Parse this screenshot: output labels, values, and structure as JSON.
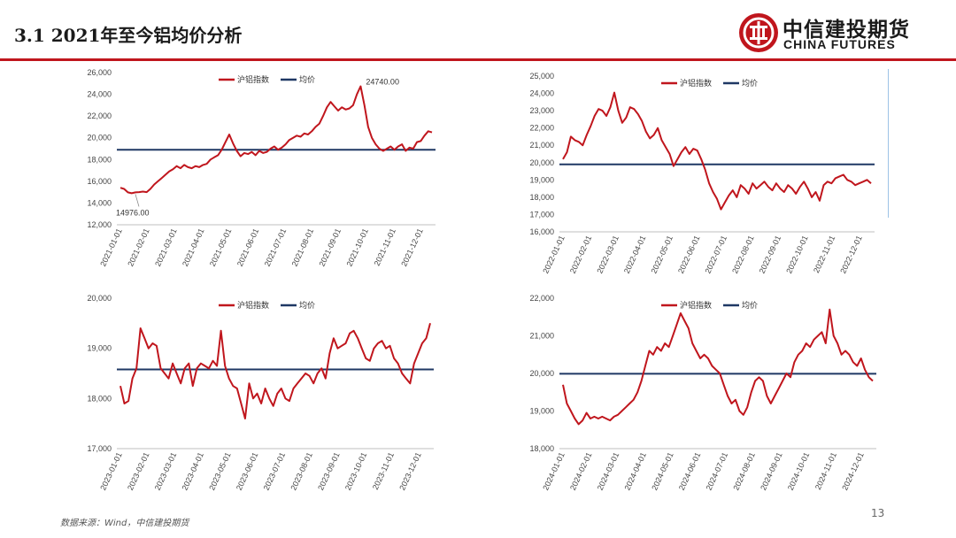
{
  "header": {
    "title": "3.1 2021年至今铝均价分析",
    "logo_cn": "中信建投期货",
    "logo_en": "CHINA FUTURES"
  },
  "footer": {
    "source": "数据来源：Wind，中信建投期货",
    "page": "13"
  },
  "colors": {
    "accent": "#c0161d",
    "series": "#c0161d",
    "mean": "#1f3864"
  },
  "chart_data": [
    {
      "type": "line",
      "legend": [
        "沪铝指数",
        "均价"
      ],
      "ylim": [
        12000,
        26000
      ],
      "yticks": [
        12000,
        14000,
        16000,
        18000,
        20000,
        22000,
        24000,
        26000
      ],
      "xticks": [
        "2021-01-01",
        "2021-02-01",
        "2021-03-01",
        "2021-04-01",
        "2021-05-01",
        "2021-06-01",
        "2021-07-01",
        "2021-08-01",
        "2021-09-01",
        "2021-10-01",
        "2021-11-01",
        "2021-12-01"
      ],
      "mean": 18900,
      "values": [
        15400,
        15300,
        14980,
        14900,
        14976,
        15000,
        15050,
        15000,
        15300,
        15700,
        16000,
        16300,
        16600,
        16900,
        17100,
        17400,
        17200,
        17500,
        17300,
        17200,
        17400,
        17300,
        17500,
        17600,
        18000,
        18200,
        18400,
        18900,
        19600,
        20300,
        19500,
        18800,
        18300,
        18600,
        18500,
        18700,
        18400,
        18800,
        18600,
        18700,
        19000,
        19200,
        18900,
        19100,
        19400,
        19800,
        20000,
        20200,
        20100,
        20400,
        20300,
        20600,
        21000,
        21300,
        22000,
        22800,
        23300,
        22900,
        22500,
        22800,
        22600,
        22700,
        23000,
        24000,
        24740,
        23000,
        21000,
        20000,
        19400,
        19000,
        18800,
        19000,
        19200,
        18900,
        19200,
        19400,
        18800,
        19100,
        19000,
        19600,
        19700,
        20200,
        20600,
        20500
      ]
    },
    {
      "type": "line",
      "legend": [
        "沪铝指数",
        "均价"
      ],
      "ylim": [
        16000,
        25000
      ],
      "yticks": [
        16000,
        17000,
        18000,
        19000,
        20000,
        21000,
        22000,
        23000,
        24000,
        25000
      ],
      "xticks": [
        "2022-01-01",
        "2022-02-01",
        "2022-03-01",
        "2022-04-01",
        "2022-05-01",
        "2022-06-01",
        "2022-07-01",
        "2022-08-01",
        "2022-09-01",
        "2022-10-01",
        "2022-11-01",
        "2022-12-01"
      ],
      "mean": 19900,
      "values": [
        20200,
        20600,
        21500,
        21300,
        21200,
        21000,
        21600,
        22100,
        22700,
        23100,
        23000,
        22700,
        23200,
        24050,
        23000,
        22300,
        22600,
        23200,
        23100,
        22800,
        22400,
        21800,
        21400,
        21600,
        22000,
        21300,
        20900,
        20500,
        19800,
        20200,
        20600,
        20900,
        20500,
        20800,
        20700,
        20200,
        19600,
        18800,
        18300,
        17900,
        17300,
        17700,
        18100,
        18400,
        18000,
        18700,
        18500,
        18200,
        18800,
        18500,
        18700,
        18900,
        18600,
        18400,
        18800,
        18500,
        18300,
        18700,
        18500,
        18200,
        18600,
        18900,
        18500,
        18000,
        18300,
        17800,
        18700,
        18900,
        18800,
        19100,
        19200,
        19300,
        19000,
        18900,
        18700,
        18800,
        18900,
        19000,
        18800
      ]
    },
    {
      "type": "line",
      "legend": [
        "沪铝指数",
        "均价"
      ],
      "ylim": [
        17000,
        20000
      ],
      "yticks": [
        17000,
        18000,
        19000,
        20000
      ],
      "xticks": [
        "2023-01-01",
        "2023-02-01",
        "2023-03-01",
        "2023-04-01",
        "2023-05-01",
        "2023-06-01",
        "2023-07-01",
        "2023-08-01",
        "2023-09-01",
        "2023-10-01",
        "2023-11-01",
        "2023-12-01"
      ],
      "mean": 18580,
      "values": [
        18250,
        17900,
        17950,
        18400,
        18600,
        19400,
        19200,
        19000,
        19100,
        19050,
        18600,
        18500,
        18400,
        18700,
        18500,
        18300,
        18600,
        18700,
        18250,
        18600,
        18700,
        18650,
        18600,
        18750,
        18650,
        19350,
        18650,
        18400,
        18250,
        18200,
        17900,
        17600,
        18300,
        18000,
        18100,
        17900,
        18200,
        18000,
        17850,
        18100,
        18200,
        18000,
        17950,
        18200,
        18300,
        18400,
        18500,
        18450,
        18300,
        18500,
        18600,
        18400,
        18900,
        19200,
        19000,
        19050,
        19100,
        19300,
        19350,
        19200,
        19000,
        18800,
        18750,
        19000,
        19100,
        19150,
        19000,
        19050,
        18800,
        18700,
        18500,
        18400,
        18300,
        18700,
        18900,
        19100,
        19200,
        19500
      ]
    },
    {
      "type": "line",
      "legend": [
        "沪铝指数",
        "均价"
      ],
      "ylim": [
        18000,
        22000
      ],
      "yticks": [
        18000,
        19000,
        20000,
        21000,
        22000
      ],
      "xticks": [
        "2024-01-01",
        "2024-02-01",
        "2024-03-01",
        "2024-04-01",
        "2024-05-01",
        "2024-06-01",
        "2024-07-01",
        "2024-08-01",
        "2024-09-01",
        "2024-10-01",
        "2024-11-01",
        "2024-12-01"
      ],
      "mean": 19990,
      "values": [
        19700,
        19200,
        19000,
        18800,
        18650,
        18750,
        18950,
        18800,
        18850,
        18800,
        18850,
        18800,
        18750,
        18850,
        18900,
        19000,
        19100,
        19200,
        19300,
        19500,
        19800,
        20200,
        20600,
        20500,
        20700,
        20600,
        20800,
        20700,
        21000,
        21300,
        21600,
        21400,
        21200,
        20800,
        20600,
        20400,
        20500,
        20400,
        20200,
        20100,
        20000,
        19700,
        19400,
        19200,
        19300,
        19000,
        18900,
        19100,
        19500,
        19800,
        19900,
        19800,
        19400,
        19200,
        19400,
        19600,
        19800,
        20000,
        19900,
        20300,
        20500,
        20600,
        20800,
        20700,
        20900,
        21000,
        21100,
        20800,
        21700,
        21000,
        20800,
        20500,
        20600,
        20500,
        20300,
        20200,
        20400,
        20100,
        19900,
        19800
      ]
    }
  ]
}
